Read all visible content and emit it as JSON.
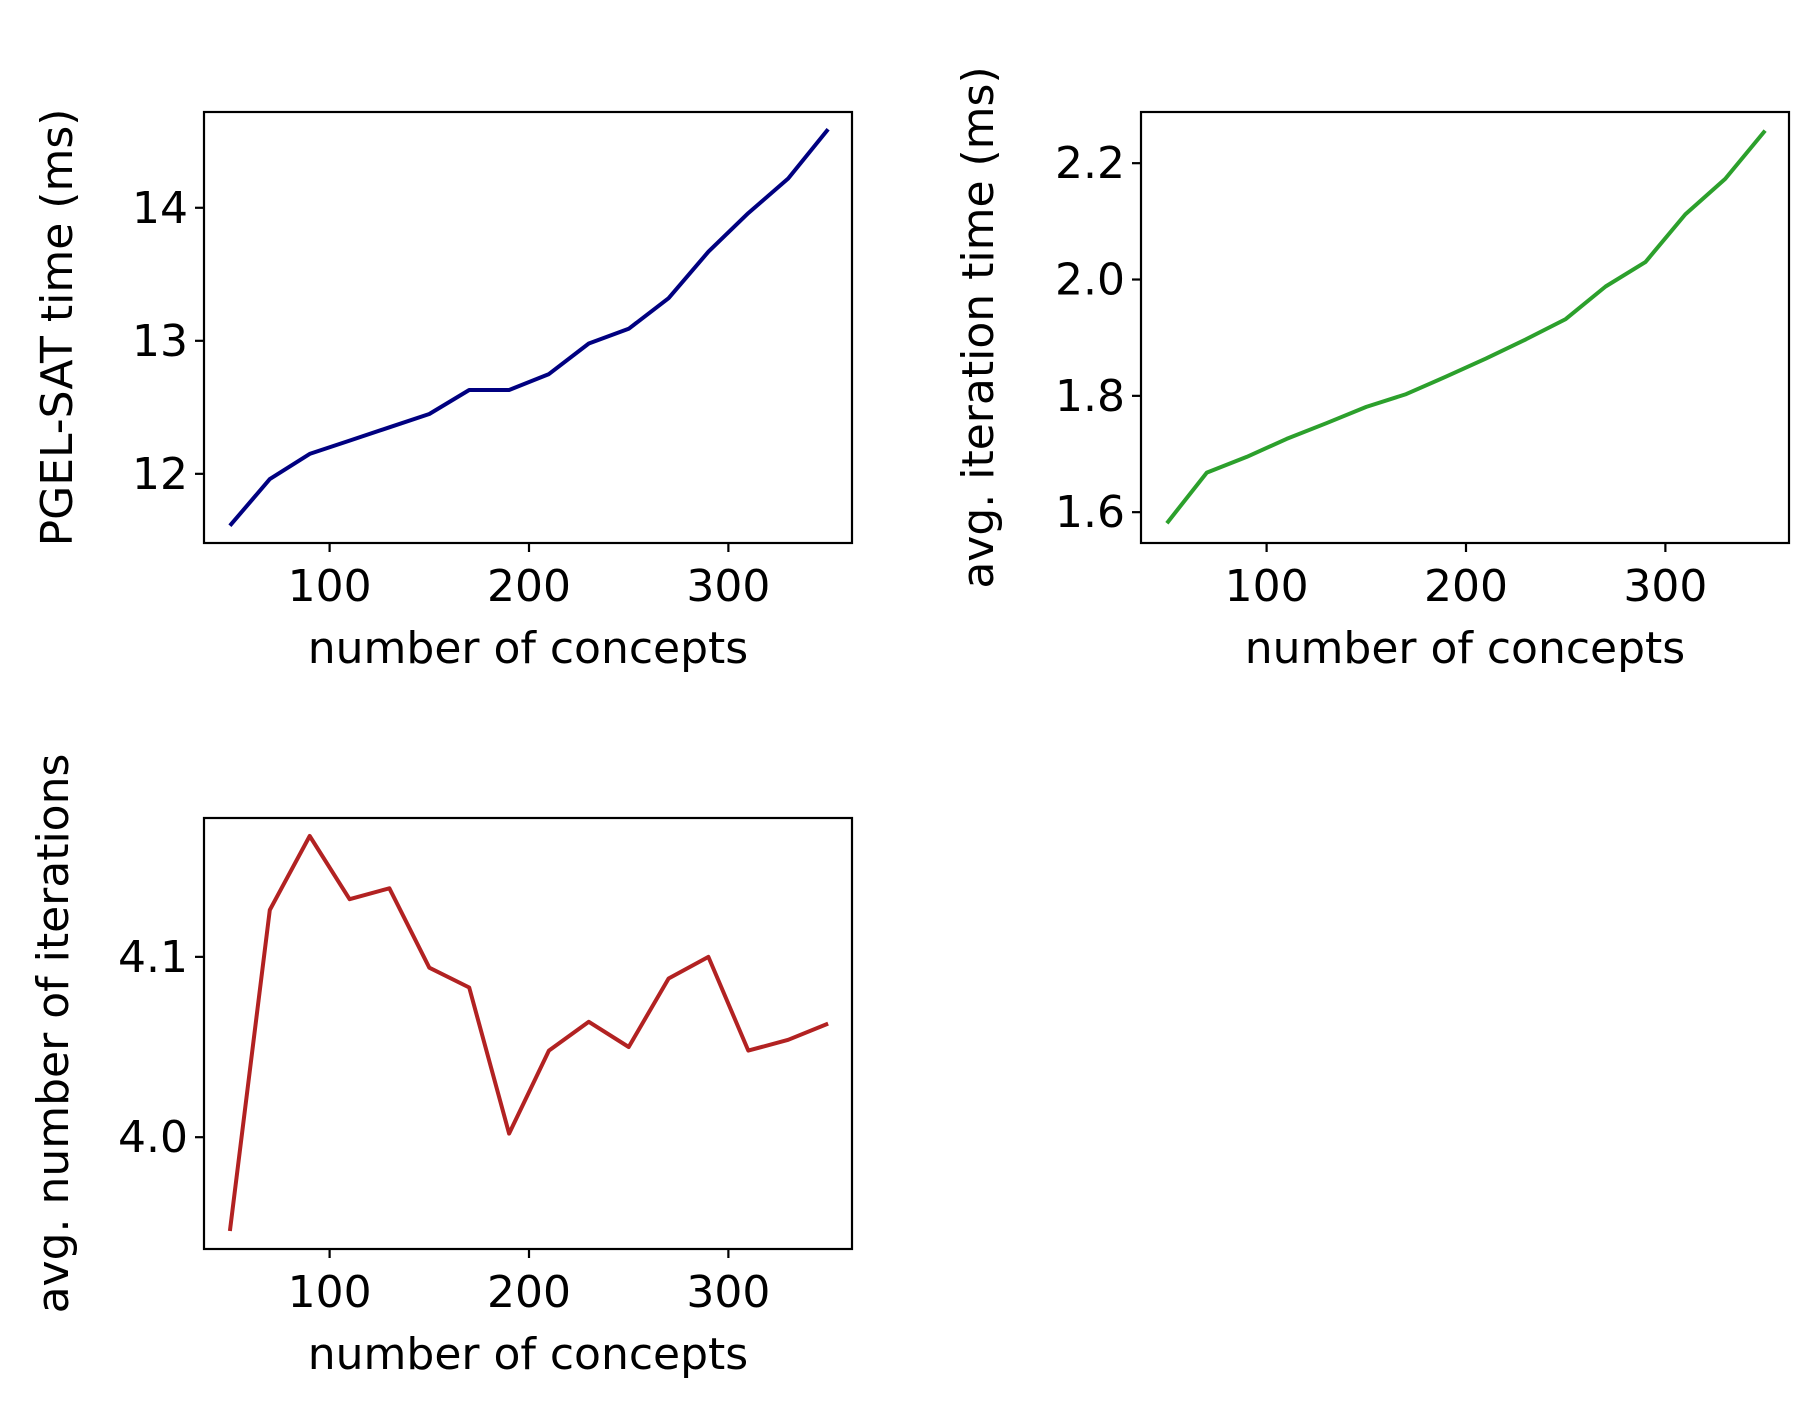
{
  "chart_data": [
    {
      "type": "line",
      "xlabel": "number of concepts",
      "ylabel": "PGEL-SAT time (ms)",
      "xlim": [
        37,
        362
      ],
      "ylim": [
        11.48,
        14.72
      ],
      "xticks": [
        100,
        200,
        300
      ],
      "yticks": [
        12,
        13,
        14
      ],
      "ytick_decimals": 0,
      "grid": false,
      "color": "#000080",
      "x": [
        50,
        70,
        90,
        110,
        130,
        150,
        170,
        190,
        210,
        230,
        250,
        270,
        290,
        310,
        330,
        350
      ],
      "y": [
        11.61,
        11.96,
        12.15,
        12.25,
        12.35,
        12.45,
        12.63,
        12.63,
        12.75,
        12.98,
        13.09,
        13.32,
        13.67,
        13.96,
        14.22,
        14.59
      ]
    },
    {
      "type": "line",
      "xlabel": "number of concepts",
      "ylabel": "avg. iteration time (ms)",
      "xlim": [
        37,
        362
      ],
      "ylim": [
        1.547,
        2.288
      ],
      "xticks": [
        100,
        200,
        300
      ],
      "yticks": [
        1.6,
        1.8,
        2.0,
        2.2
      ],
      "ytick_decimals": 1,
      "grid": false,
      "color": "#2ca02c",
      "x": [
        50,
        70,
        90,
        110,
        130,
        150,
        170,
        190,
        210,
        230,
        250,
        270,
        290,
        310,
        330,
        350
      ],
      "y": [
        1.581,
        1.668,
        1.695,
        1.726,
        1.753,
        1.781,
        1.803,
        1.833,
        1.864,
        1.897,
        1.932,
        1.988,
        2.03,
        2.112,
        2.173,
        2.256
      ]
    },
    {
      "type": "line",
      "xlabel": "number of concepts",
      "ylabel": "avg. number of iterations",
      "xlim": [
        37,
        362
      ],
      "ylim": [
        3.938,
        4.177
      ],
      "xticks": [
        100,
        200,
        300
      ],
      "yticks": [
        4.0,
        4.1
      ],
      "ytick_decimals": 1,
      "grid": false,
      "color": "#b22222",
      "x": [
        50,
        70,
        90,
        110,
        130,
        150,
        170,
        190,
        210,
        230,
        250,
        270,
        290,
        310,
        330,
        350
      ],
      "y": [
        3.948,
        4.126,
        4.167,
        4.132,
        4.138,
        4.094,
        4.083,
        4.002,
        4.048,
        4.064,
        4.05,
        4.088,
        4.1,
        4.048,
        4.054,
        4.063
      ]
    }
  ]
}
